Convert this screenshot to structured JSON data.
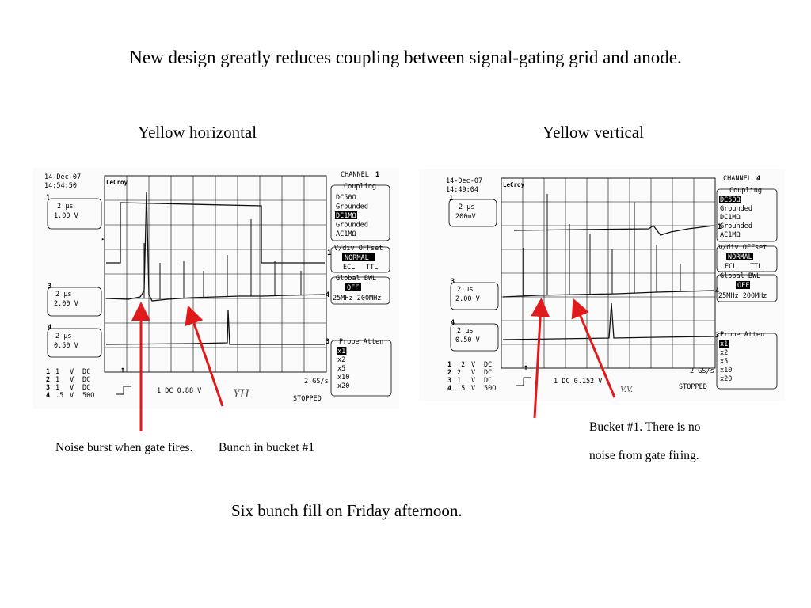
{
  "slide": {
    "title": "New design greatly reduces coupling between signal-gating grid and anode.",
    "left_heading": "Yellow horizontal",
    "right_heading": "Yellow vertical",
    "caption_noise": "Noise burst when gate fires.",
    "caption_bunch": "Bunch in bucket #1",
    "caption_bucket_line1": "Bucket #1. There is no",
    "caption_bucket_line2": "noise from gate firing.",
    "footer": "Six bunch fill on Friday afternoon.",
    "arrow_color": "#e0191b"
  },
  "scope_left": {
    "date": "14-Dec-07",
    "time": "14:54:50",
    "brand": "LeCroy",
    "channel_label": "CHANNEL",
    "channel_num": "1",
    "ch1_num": "1",
    "ch1_timebase": "2 µs",
    "ch1_volts": "1.00 V",
    "ch3_num": "3",
    "ch3_timebase": "2 µs",
    "ch3_volts": "2.00 V",
    "ch4_num": "4",
    "ch4_timebase": "2 µs",
    "ch4_volts": "0.50 V",
    "coupling_title": "Coupling",
    "coupling_opts": [
      "DC50Ω",
      "Grounded",
      "DC1MΩ",
      "Grounded",
      "AC1MΩ"
    ],
    "vdiv_title": "V/div OFFset",
    "vdiv_normal": "NORMAL",
    "vdiv_ecl": "ECL",
    "vdiv_ttl": "TTL",
    "bwl_title": "Global BWL",
    "bwl_off": "OFF",
    "bwl_opts": "25MHz 200MHz",
    "probe_title": "Probe Atten",
    "probe_opts": [
      "x1",
      "x2",
      "x5",
      "x10",
      "x20"
    ],
    "legend": [
      {
        "n": "1",
        "v": "1",
        "u": "V",
        "c": "DC"
      },
      {
        "n": "2",
        "v": "1",
        "u": "V",
        "c": "DC"
      },
      {
        "n": "3",
        "v": "1",
        "u": "V",
        "c": "DC"
      },
      {
        "n": "4",
        "v": ".5",
        "u": "V",
        "c": "50Ω"
      }
    ],
    "trigger_text": "1  DC 0.88 V",
    "handwritten": "YH",
    "rate": "2 GS/s",
    "status": "STOPPED",
    "marker_left_3": "3",
    "marker_left_1": "1",
    "marker_right_1": "1",
    "marker_right_4": "4",
    "marker_right_3": "3"
  },
  "scope_right": {
    "date": "14-Dec-07",
    "time": "14:49:04",
    "brand": "LeCroy",
    "channel_label": "CHANNEL",
    "channel_num": "4",
    "ch1_num": "1",
    "ch1_timebase": "2 µs",
    "ch1_volts": "200mV",
    "ch3_num": "3",
    "ch3_timebase": "2 µs",
    "ch3_volts": "2.00 V",
    "ch4_num": "4",
    "ch4_timebase": "2 µs",
    "ch4_volts": "0.50 V",
    "coupling_title": "Coupling",
    "coupling_opts": [
      "DC50Ω",
      "Grounded",
      "DC1MΩ",
      "Grounded",
      "AC1MΩ"
    ],
    "vdiv_title": "V/div OFFset",
    "vdiv_normal": "NORMAL",
    "vdiv_ecl": "ECL",
    "vdiv_ttl": "TTL",
    "bwl_title": "Global BWL",
    "bwl_off": "OFF",
    "bwl_opts": "25MHz 200MHz",
    "probe_title": "Probe Atten",
    "probe_opts": [
      "x1",
      "x2",
      "x5",
      "x10",
      "x20"
    ],
    "legend": [
      {
        "n": "1",
        "v": ".2",
        "u": "V",
        "c": "DC"
      },
      {
        "n": "2",
        "v": "2",
        "u": "V",
        "c": "DC"
      },
      {
        "n": "3",
        "v": "1",
        "u": "V",
        "c": "DC"
      },
      {
        "n": "4",
        "v": ".5",
        "u": "V",
        "c": "50Ω"
      }
    ],
    "trigger_text": "1  DC 0.152 V",
    "handwritten": "V.V.",
    "rate": "2 GS/s",
    "status": "STOPPED",
    "marker_left_3": "3",
    "marker_left_1": "1",
    "marker_right_1": "1",
    "marker_right_4": "4",
    "marker_right_3": "3"
  }
}
